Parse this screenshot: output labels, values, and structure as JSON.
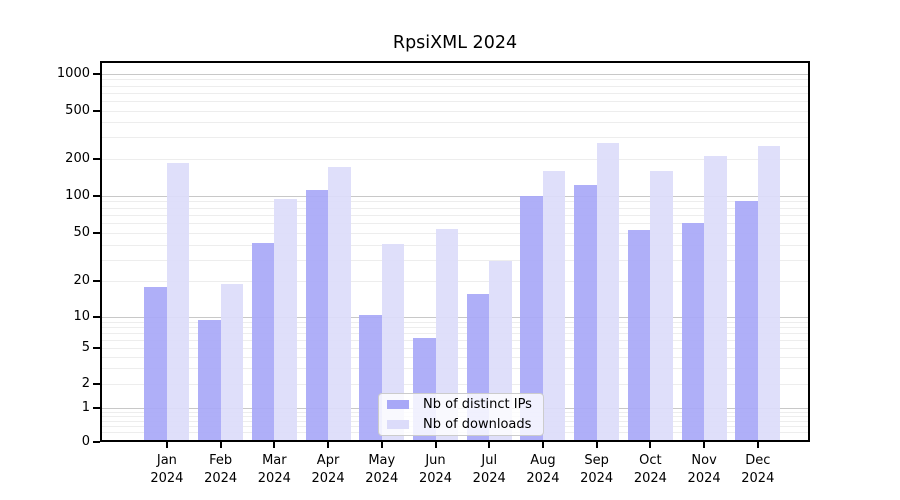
{
  "title": "RpsiXML 2024",
  "chart_data": {
    "type": "bar",
    "title": "RpsiXML 2024",
    "x_months": [
      "Jan",
      "Feb",
      "Mar",
      "Apr",
      "May",
      "Jun",
      "Jul",
      "Aug",
      "Sep",
      "Oct",
      "Nov",
      "Dec"
    ],
    "x_year": "2024",
    "series": [
      {
        "name": "Nb of distinct IPs",
        "color": "#a8a8f7",
        "values": [
          17,
          9,
          40,
          108,
          10,
          6,
          15,
          96,
          118,
          51,
          58,
          88
        ]
      },
      {
        "name": "Nb of downloads",
        "color": "#dcdcfa",
        "values": [
          180,
          18,
          92,
          165,
          39,
          52,
          28,
          154,
          260,
          153,
          205,
          245
        ]
      }
    ],
    "yticks": [
      0,
      1,
      2,
      5,
      10,
      20,
      50,
      100,
      200,
      500,
      1000
    ],
    "ylim": [
      0,
      1000
    ],
    "yscale": "log-like-with-zero-baseline",
    "grid": true,
    "legend_position": "lower-center-inside"
  }
}
